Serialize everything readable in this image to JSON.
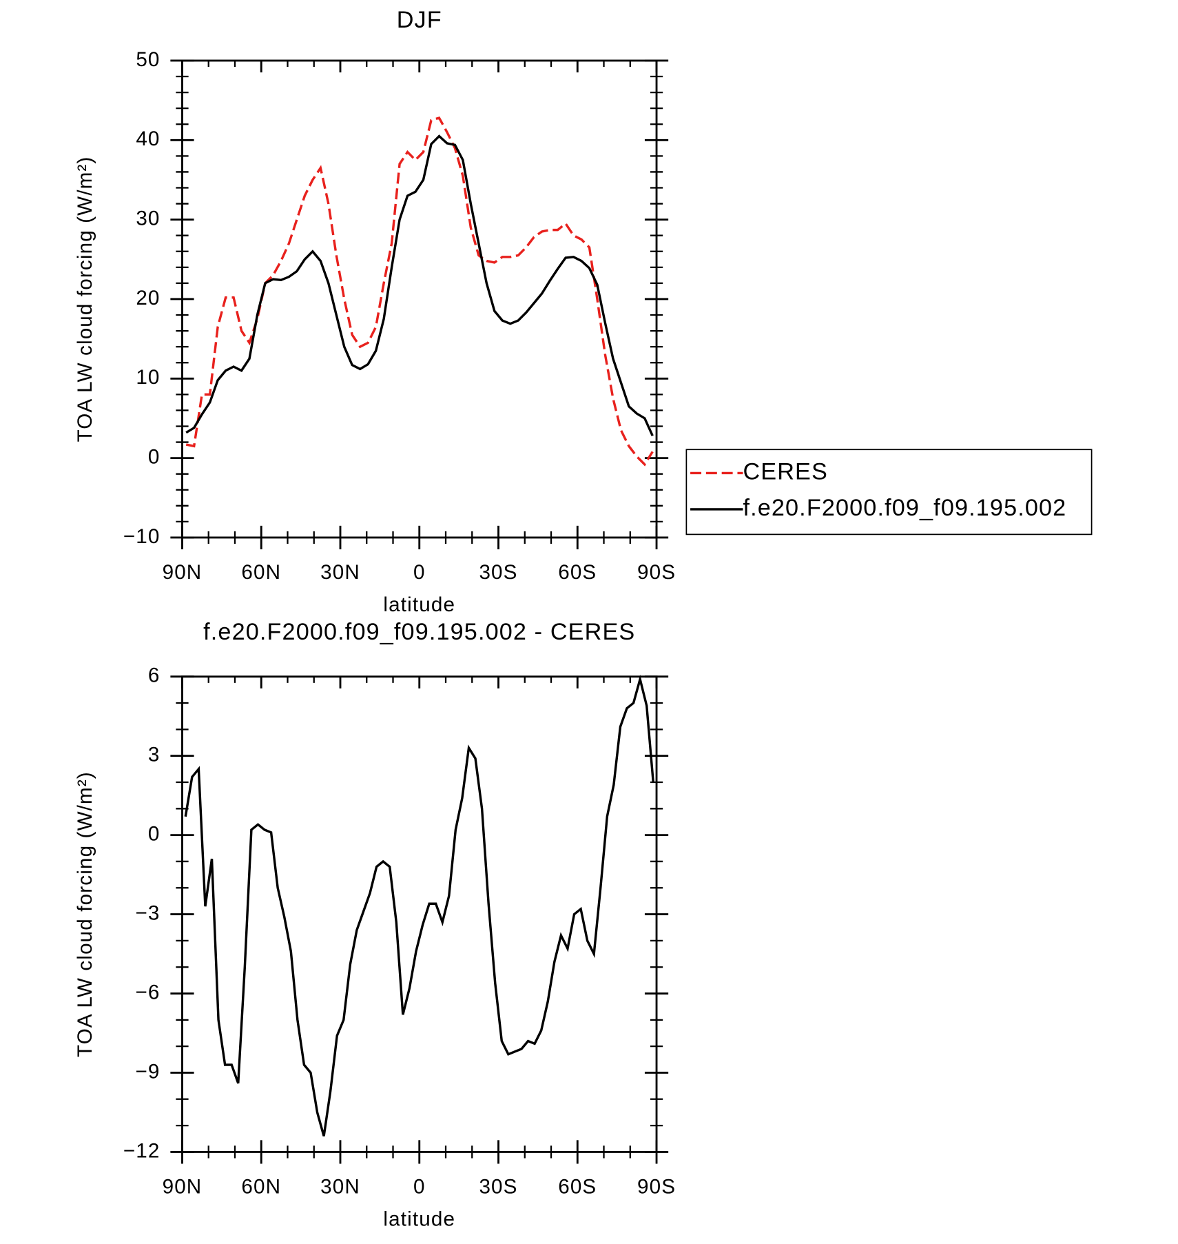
{
  "chart_data": [
    {
      "type": "line",
      "title": "DJF",
      "xlabel": "latitude",
      "ylabel": "TOA LW cloud forcing (W/m²)",
      "x": [
        88.5,
        85.5,
        82.5,
        79.5,
        76.5,
        73.5,
        70.5,
        67.5,
        64.5,
        61.5,
        58.5,
        55.5,
        52.5,
        49.5,
        46.5,
        43.5,
        40.5,
        37.5,
        34.5,
        31.5,
        28.5,
        25.5,
        22.5,
        19.5,
        16.5,
        13.5,
        10.5,
        7.5,
        4.5,
        1.5,
        -1.5,
        -4.5,
        -7.5,
        -10.5,
        -13.5,
        -16.5,
        -19.5,
        -22.5,
        -25.5,
        -28.5,
        -31.5,
        -34.5,
        -37.5,
        -40.5,
        -43.5,
        -46.5,
        -49.5,
        -52.5,
        -55.5,
        -58.5,
        -61.5,
        -64.5,
        -67.5,
        -70.5,
        -73.5,
        -76.5,
        -79.5,
        -82.5,
        -85.5,
        -88.5
      ],
      "series": [
        {
          "name": "CERES",
          "color": "#e8211d",
          "dashed": true,
          "values": [
            1.7,
            1.5,
            8,
            8,
            16.5,
            20.2,
            20.2,
            16,
            14.5,
            17.5,
            22,
            23,
            24.8,
            27,
            30,
            33,
            35,
            36.5,
            32,
            25.5,
            20,
            15.5,
            14,
            14.5,
            16.5,
            22,
            27,
            37,
            38.5,
            37.5,
            38.5,
            42.5,
            42.8,
            41,
            39,
            35.5,
            29,
            25.5,
            24.8,
            24.6,
            25.3,
            25.3,
            25.5,
            26.5,
            27.8,
            28.5,
            28.7,
            28.7,
            29.5,
            28,
            27.5,
            26.5,
            20,
            13,
            7.5,
            3.5,
            1.5,
            0.2,
            -0.8,
            0.8
          ]
        },
        {
          "name": "f.e20.F2000.f09_f09.195.002",
          "color": "#000000",
          "dashed": false,
          "values": [
            3.2,
            3.8,
            5.5,
            7,
            9.8,
            11,
            11.5,
            11,
            12.5,
            18,
            22,
            22.5,
            22.4,
            22.8,
            23.5,
            25,
            26,
            24.8,
            22,
            18,
            14,
            11.7,
            11.2,
            11.8,
            13.5,
            17.5,
            24,
            30,
            33,
            33.5,
            35,
            39.5,
            40.5,
            39.6,
            39.4,
            37.5,
            32,
            27,
            22,
            18.5,
            17.3,
            16.9,
            17.3,
            18.3,
            19.5,
            20.7,
            22.3,
            23.8,
            25.2,
            25.3,
            24.8,
            23.9,
            21.8,
            17,
            12.5,
            9.5,
            6.5,
            5.6,
            5,
            2.8
          ]
        }
      ],
      "xlim": [
        90,
        -90
      ],
      "xticks": [
        {
          "value": 90,
          "label": "90N"
        },
        {
          "value": 60,
          "label": "60N"
        },
        {
          "value": 30,
          "label": "30N"
        },
        0,
        {
          "value": -30,
          "label": "30S"
        },
        {
          "value": -60,
          "label": "60S"
        },
        {
          "value": -90,
          "label": "90S"
        }
      ],
      "ylim": [
        -10,
        50
      ],
      "yticks": [
        {
          "value": -10,
          "label": "−10"
        },
        0,
        10,
        20,
        30,
        40,
        50
      ],
      "legend": "right"
    },
    {
      "type": "line",
      "title": "f.e20.F2000.f09_f09.195.002 - CERES",
      "xlabel": "latitude",
      "ylabel": "TOA LW cloud forcing (W/m²)",
      "x": [
        88.75,
        86.25,
        83.75,
        81.25,
        78.75,
        76.25,
        73.75,
        71.25,
        68.75,
        66.25,
        63.75,
        61.25,
        58.75,
        56.25,
        53.75,
        51.25,
        48.75,
        46.25,
        43.75,
        41.25,
        38.75,
        36.25,
        33.75,
        31.25,
        28.75,
        26.25,
        23.75,
        21.25,
        18.75,
        16.25,
        13.75,
        11.25,
        8.75,
        6.25,
        3.75,
        1.25,
        -1.25,
        -3.75,
        -6.25,
        -8.75,
        -11.25,
        -13.75,
        -16.25,
        -18.75,
        -21.25,
        -23.75,
        -26.25,
        -28.75,
        -31.25,
        -33.75,
        -36.25,
        -38.75,
        -41.25,
        -43.75,
        -46.25,
        -48.75,
        -51.25,
        -53.75,
        -56.25,
        -58.75,
        -61.25,
        -63.75,
        -66.25,
        -68.75,
        -71.25,
        -73.75,
        -76.25,
        -78.75,
        -81.25,
        -83.75,
        -86.25,
        -88.75
      ],
      "values": [
        0.7,
        2.2,
        2.5,
        -2.7,
        -0.9,
        -7,
        -8.7,
        -8.7,
        -9.4,
        -5,
        0.2,
        0.4,
        0.2,
        0.1,
        -2,
        -3.1,
        -4.4,
        -7,
        -8.7,
        -9,
        -10.5,
        -11.4,
        -9.7,
        -7.6,
        -7,
        -4.9,
        -3.6,
        -2.9,
        -2.2,
        -1.2,
        -1,
        -1.2,
        -3.3,
        -6.8,
        -5.8,
        -4.4,
        -3.4,
        -2.6,
        -2.6,
        -3.3,
        -2.3,
        0.2,
        1.4,
        3.3,
        2.9,
        1,
        -2.6,
        -5.6,
        -7.8,
        -8.3,
        -8.2,
        -8.1,
        -7.8,
        -7.9,
        -7.4,
        -6.3,
        -4.8,
        -3.8,
        -4.3,
        -3,
        -2.8,
        -4,
        -4.5,
        -2,
        0.7,
        1.9,
        4.1,
        4.8,
        5,
        5.9,
        4.9,
        2
      ],
      "color": "#000000",
      "xlim": [
        90,
        -90
      ],
      "xticks": [
        {
          "value": 90,
          "label": "90N"
        },
        {
          "value": 60,
          "label": "60N"
        },
        {
          "value": 30,
          "label": "30N"
        },
        0,
        {
          "value": -30,
          "label": "30S"
        },
        {
          "value": -60,
          "label": "60S"
        },
        {
          "value": -90,
          "label": "90S"
        }
      ],
      "ylim": [
        -12,
        6
      ],
      "yticks": [
        {
          "value": -12,
          "label": "−12"
        },
        {
          "value": -9,
          "label": "−9"
        },
        {
          "value": -6,
          "label": "−6"
        },
        {
          "value": -3,
          "label": "−3"
        },
        0,
        3,
        6
      ]
    }
  ]
}
